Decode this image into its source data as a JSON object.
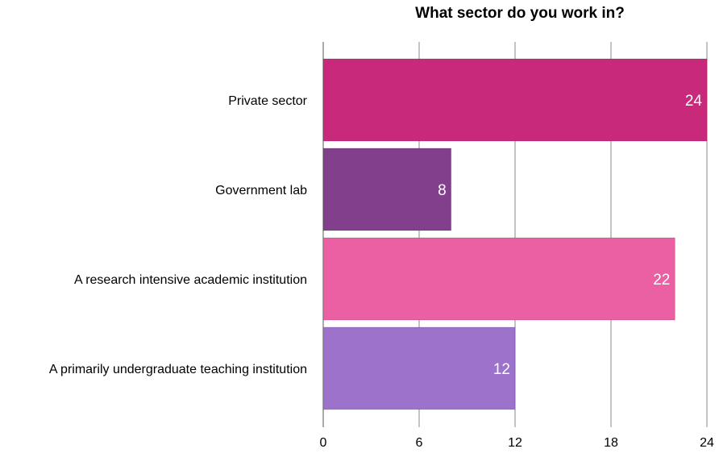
{
  "chart_data": {
    "type": "bar",
    "orientation": "horizontal",
    "title": "What sector do you work in?",
    "categories": [
      "Private sector",
      "Government lab",
      "A research intensive academic institution",
      "A primarily undergraduate teaching institution"
    ],
    "values": [
      24,
      8,
      22,
      12
    ],
    "colors": [
      "#c9297a",
      "#823f8c",
      "#ea60a3",
      "#9c72cb"
    ],
    "xlim": [
      0,
      24
    ],
    "xticks": [
      0,
      6,
      12,
      18,
      24
    ],
    "grid": true,
    "xlabel": "",
    "ylabel": ""
  }
}
